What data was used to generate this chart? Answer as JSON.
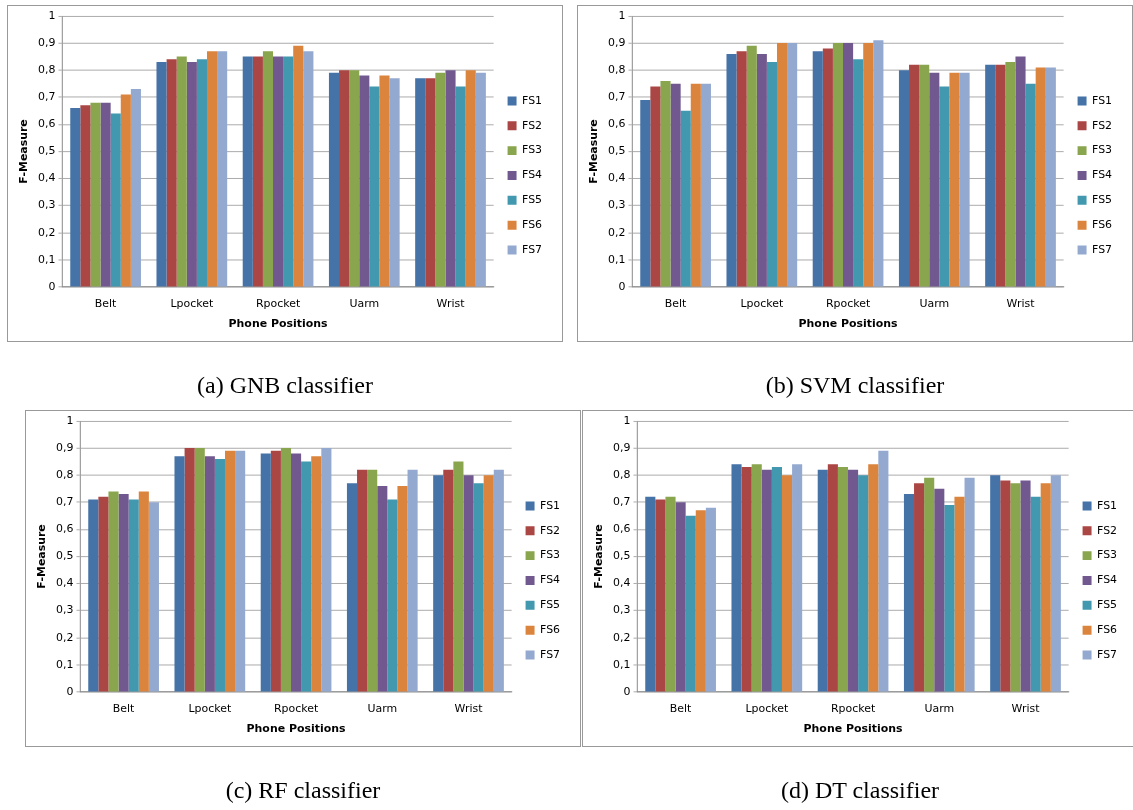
{
  "chart_data": [
    {
      "type": "bar",
      "xlabel": "Phone Positions",
      "ylabel": "F-Measure",
      "categories": [
        "Belt",
        "Lpocket",
        "Rpocket",
        "Uarm",
        "Wrist"
      ],
      "ylim": [
        0,
        1
      ],
      "yticks": [
        {
          "value": 0,
          "label": "0"
        },
        {
          "value": 0.1,
          "label": "0,1"
        },
        {
          "value": 0.2,
          "label": "0,2"
        },
        {
          "value": 0.3,
          "label": "0,3"
        },
        {
          "value": 0.4,
          "label": "0,4"
        },
        {
          "value": 0.5,
          "label": "0,5"
        },
        {
          "value": 0.6,
          "label": "0,6"
        },
        {
          "value": 0.7,
          "label": "0,7"
        },
        {
          "value": 0.8,
          "label": "0,8"
        },
        {
          "value": 0.9,
          "label": "0,9"
        },
        {
          "value": 1,
          "label": "1"
        }
      ],
      "grid": "y",
      "legend": "right",
      "annotations": [
        "(a) GNB classifier"
      ],
      "series": [
        {
          "name": "FS1",
          "color": "#4572a7",
          "values": [
            0.66,
            0.83,
            0.85,
            0.79,
            0.77
          ]
        },
        {
          "name": "FS2",
          "color": "#aa4643",
          "values": [
            0.67,
            0.84,
            0.85,
            0.8,
            0.77
          ]
        },
        {
          "name": "FS3",
          "color": "#89a54e",
          "values": [
            0.68,
            0.85,
            0.87,
            0.8,
            0.79
          ]
        },
        {
          "name": "FS4",
          "color": "#71588f",
          "values": [
            0.68,
            0.83,
            0.85,
            0.78,
            0.8
          ]
        },
        {
          "name": "FS5",
          "color": "#4198af",
          "values": [
            0.64,
            0.84,
            0.85,
            0.74,
            0.74
          ]
        },
        {
          "name": "FS6",
          "color": "#db843d",
          "values": [
            0.71,
            0.87,
            0.89,
            0.78,
            0.8
          ]
        },
        {
          "name": "FS7",
          "color": "#93a9cf",
          "values": [
            0.73,
            0.87,
            0.87,
            0.77,
            0.79
          ]
        }
      ]
    },
    {
      "type": "bar",
      "xlabel": "Phone Positions",
      "ylabel": "F-Measure",
      "categories": [
        "Belt",
        "Lpocket",
        "Rpocket",
        "Uarm",
        "Wrist"
      ],
      "ylim": [
        0,
        1
      ],
      "yticks": [
        {
          "value": 0,
          "label": "0"
        },
        {
          "value": 0.1,
          "label": "0,1"
        },
        {
          "value": 0.2,
          "label": "0,2"
        },
        {
          "value": 0.3,
          "label": "0,3"
        },
        {
          "value": 0.4,
          "label": "0,4"
        },
        {
          "value": 0.5,
          "label": "0,5"
        },
        {
          "value": 0.6,
          "label": "0,6"
        },
        {
          "value": 0.7,
          "label": "0,7"
        },
        {
          "value": 0.8,
          "label": "0,8"
        },
        {
          "value": 0.9,
          "label": "0,9"
        },
        {
          "value": 1,
          "label": "1"
        }
      ],
      "grid": "y",
      "legend": "right",
      "annotations": [
        "(b) SVM classifier"
      ],
      "series": [
        {
          "name": "FS1",
          "color": "#4572a7",
          "values": [
            0.69,
            0.86,
            0.87,
            0.8,
            0.82
          ]
        },
        {
          "name": "FS2",
          "color": "#aa4643",
          "values": [
            0.74,
            0.87,
            0.88,
            0.82,
            0.82
          ]
        },
        {
          "name": "FS3",
          "color": "#89a54e",
          "values": [
            0.76,
            0.89,
            0.9,
            0.82,
            0.83
          ]
        },
        {
          "name": "FS4",
          "color": "#71588f",
          "values": [
            0.75,
            0.86,
            0.9,
            0.79,
            0.85
          ]
        },
        {
          "name": "FS5",
          "color": "#4198af",
          "values": [
            0.65,
            0.83,
            0.84,
            0.74,
            0.75
          ]
        },
        {
          "name": "FS6",
          "color": "#db843d",
          "values": [
            0.75,
            0.9,
            0.9,
            0.79,
            0.81
          ]
        },
        {
          "name": "FS7",
          "color": "#93a9cf",
          "values": [
            0.75,
            0.9,
            0.91,
            0.79,
            0.81
          ]
        }
      ]
    },
    {
      "type": "bar",
      "xlabel": "Phone Positions",
      "ylabel": "F-Measure",
      "categories": [
        "Belt",
        "Lpocket",
        "Rpocket",
        "Uarm",
        "Wrist"
      ],
      "ylim": [
        0,
        1
      ],
      "yticks": [
        {
          "value": 0,
          "label": "0"
        },
        {
          "value": 0.1,
          "label": "0,1"
        },
        {
          "value": 0.2,
          "label": "0,2"
        },
        {
          "value": 0.3,
          "label": "0,3"
        },
        {
          "value": 0.4,
          "label": "0,4"
        },
        {
          "value": 0.5,
          "label": "0,5"
        },
        {
          "value": 0.6,
          "label": "0,6"
        },
        {
          "value": 0.7,
          "label": "0,7"
        },
        {
          "value": 0.8,
          "label": "0,8"
        },
        {
          "value": 0.9,
          "label": "0,9"
        },
        {
          "value": 1,
          "label": "1"
        }
      ],
      "grid": "y",
      "legend": "right",
      "annotations": [
        "(c) RF classifier"
      ],
      "series": [
        {
          "name": "FS1",
          "color": "#4572a7",
          "values": [
            0.71,
            0.87,
            0.88,
            0.77,
            0.8
          ]
        },
        {
          "name": "FS2",
          "color": "#aa4643",
          "values": [
            0.72,
            0.9,
            0.89,
            0.82,
            0.82
          ]
        },
        {
          "name": "FS3",
          "color": "#89a54e",
          "values": [
            0.74,
            0.9,
            0.9,
            0.82,
            0.85
          ]
        },
        {
          "name": "FS4",
          "color": "#71588f",
          "values": [
            0.73,
            0.87,
            0.88,
            0.76,
            0.8
          ]
        },
        {
          "name": "FS5",
          "color": "#4198af",
          "values": [
            0.71,
            0.86,
            0.85,
            0.71,
            0.77
          ]
        },
        {
          "name": "FS6",
          "color": "#db843d",
          "values": [
            0.74,
            0.89,
            0.87,
            0.76,
            0.8
          ]
        },
        {
          "name": "FS7",
          "color": "#93a9cf",
          "values": [
            0.7,
            0.89,
            0.9,
            0.82,
            0.82
          ]
        }
      ]
    },
    {
      "type": "bar",
      "xlabel": "Phone Positions",
      "ylabel": "F-Measure",
      "categories": [
        "Belt",
        "Lpocket",
        "Rpocket",
        "Uarm",
        "Wrist"
      ],
      "ylim": [
        0,
        1
      ],
      "yticks": [
        {
          "value": 0,
          "label": "0"
        },
        {
          "value": 0.1,
          "label": "0,1"
        },
        {
          "value": 0.2,
          "label": "0,2"
        },
        {
          "value": 0.3,
          "label": "0,3"
        },
        {
          "value": 0.4,
          "label": "0,4"
        },
        {
          "value": 0.5,
          "label": "0,5"
        },
        {
          "value": 0.6,
          "label": "0,6"
        },
        {
          "value": 0.7,
          "label": "0,7"
        },
        {
          "value": 0.8,
          "label": "0,8"
        },
        {
          "value": 0.9,
          "label": "0,9"
        },
        {
          "value": 1,
          "label": "1"
        }
      ],
      "grid": "y",
      "legend": "right",
      "annotations": [
        "(d) DT classifier"
      ],
      "series": [
        {
          "name": "FS1",
          "color": "#4572a7",
          "values": [
            0.72,
            0.84,
            0.82,
            0.73,
            0.8
          ]
        },
        {
          "name": "FS2",
          "color": "#aa4643",
          "values": [
            0.71,
            0.83,
            0.84,
            0.77,
            0.78
          ]
        },
        {
          "name": "FS3",
          "color": "#89a54e",
          "values": [
            0.72,
            0.84,
            0.83,
            0.79,
            0.77
          ]
        },
        {
          "name": "FS4",
          "color": "#71588f",
          "values": [
            0.7,
            0.82,
            0.82,
            0.75,
            0.78
          ]
        },
        {
          "name": "FS5",
          "color": "#4198af",
          "values": [
            0.65,
            0.83,
            0.8,
            0.69,
            0.72
          ]
        },
        {
          "name": "FS6",
          "color": "#db843d",
          "values": [
            0.67,
            0.8,
            0.84,
            0.72,
            0.77
          ]
        },
        {
          "name": "FS7",
          "color": "#93a9cf",
          "values": [
            0.68,
            0.84,
            0.89,
            0.79,
            0.8
          ]
        }
      ]
    }
  ]
}
